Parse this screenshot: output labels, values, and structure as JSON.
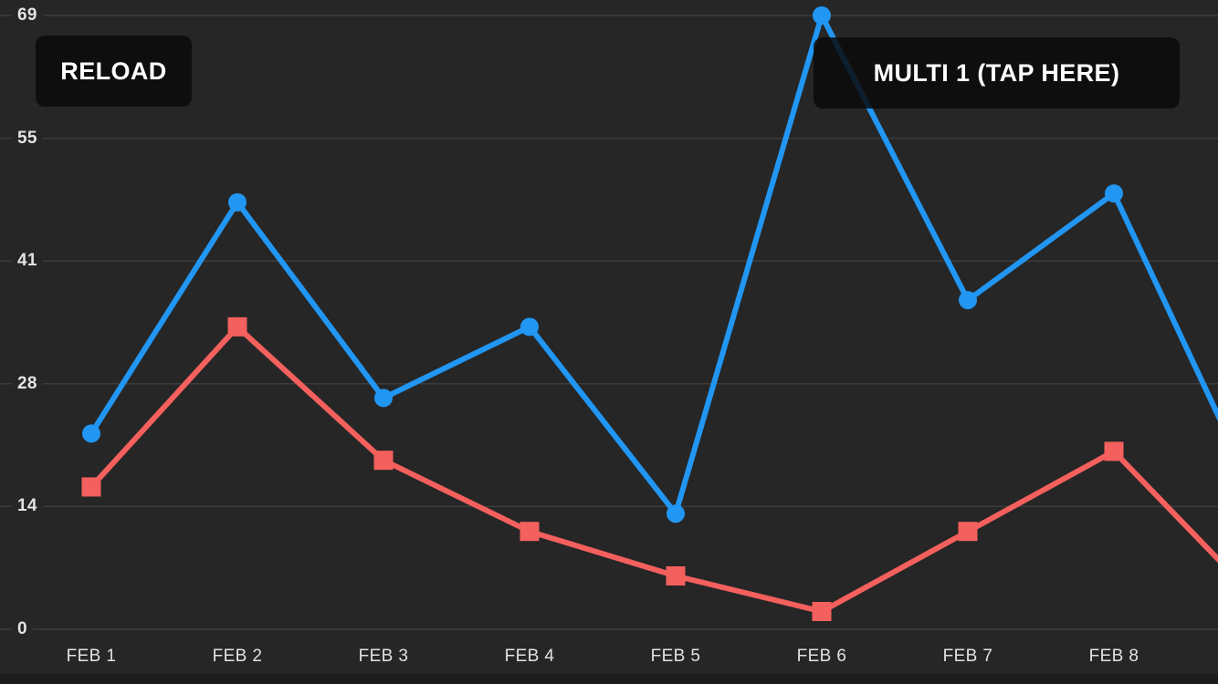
{
  "colors": {
    "background": "#262626",
    "grid": "#3c3c3c",
    "axis_label": "#e3e3e3",
    "bottom_strip": "#1c1c1c",
    "button_background": "rgba(10,10,10,0.85)",
    "button_text": "#ffffff"
  },
  "buttons": {
    "reload_label": "RELOAD",
    "multi_label": "MULTI 1 (TAP HERE)"
  },
  "chart_data": {
    "type": "line",
    "title": "",
    "xlabel": "",
    "ylabel": "",
    "categories": [
      "FEB 1",
      "FEB 2",
      "FEB 3",
      "FEB 4",
      "FEB 5",
      "FEB 6",
      "FEB 7",
      "FEB 8"
    ],
    "y_tick_labels_top_to_bottom": [
      "69",
      "55",
      "41",
      "28",
      "14",
      "0"
    ],
    "ylim": [
      0,
      69
    ],
    "grid": true,
    "legend": false,
    "series": [
      {
        "name": "blue-circle-series",
        "color": "#2196f3",
        "marker": "circle",
        "line_width": 6,
        "values": [
          22,
          48,
          26,
          34,
          13,
          69,
          37,
          49
        ],
        "offscreen_next_value": 14
      },
      {
        "name": "red-square-series",
        "color": "#f4605d",
        "marker": "square",
        "line_width": 6,
        "values": [
          16,
          34,
          19,
          11,
          6,
          2,
          11,
          20
        ],
        "offscreen_next_value": 3
      }
    ]
  }
}
